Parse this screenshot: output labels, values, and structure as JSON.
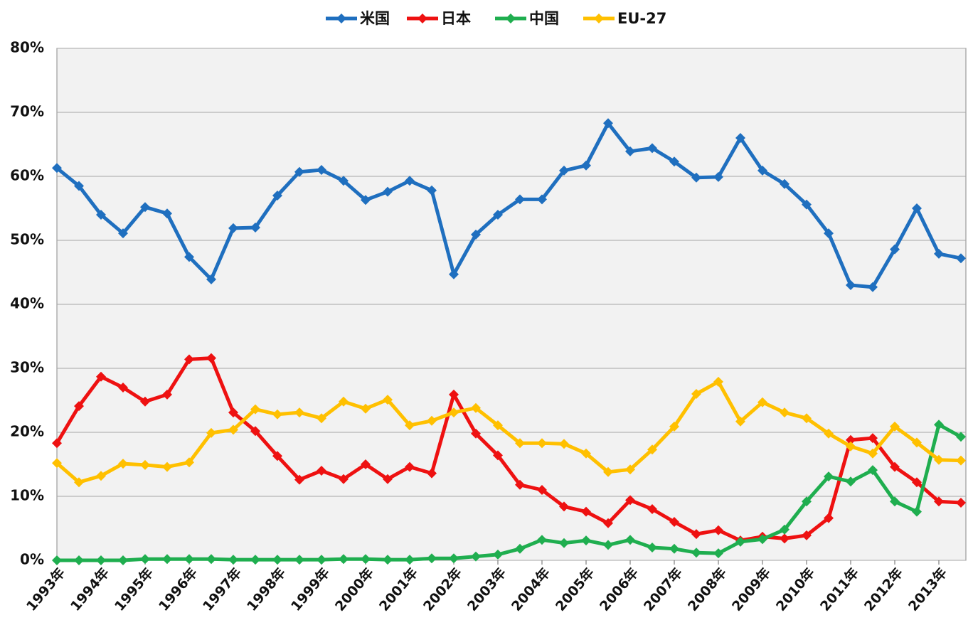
{
  "chart_data": {
    "type": "line",
    "categories": [
      "1993年",
      null,
      "1994年",
      null,
      "1995年",
      null,
      "1996年",
      null,
      "1997年",
      null,
      "1998年",
      null,
      "1999年",
      null,
      "2000年",
      null,
      "2001年",
      null,
      "2002年",
      null,
      "2003年",
      null,
      "2004年",
      null,
      "2005年",
      null,
      "2006年",
      null,
      "2007年",
      null,
      "2008年",
      null,
      "2009年",
      null,
      "2010年",
      null,
      "2011年",
      null,
      "2012年",
      null,
      "2013年",
      null
    ],
    "series": [
      {
        "name": "米国",
        "color": "#1f6fbf",
        "values": [
          61.3,
          58.5,
          54,
          51.1,
          55.2,
          54.2,
          47.4,
          43.9,
          51.9,
          52,
          57,
          60.7,
          61,
          59.3,
          56.3,
          57.6,
          59.3,
          57.8,
          44.7,
          50.9,
          54,
          56.4,
          56.4,
          60.9,
          61.7,
          68.3,
          63.9,
          64.4,
          62.3,
          59.8,
          59.9,
          66,
          60.9,
          58.8,
          55.6,
          51.1,
          43,
          42.7,
          48.6,
          55,
          47.9,
          47.2
        ]
      },
      {
        "name": "日本",
        "color": "#ee1111",
        "values": [
          18.3,
          24.1,
          28.7,
          27,
          24.8,
          25.9,
          31.4,
          31.6,
          23.1,
          20.2,
          16.3,
          12.6,
          14,
          12.7,
          15,
          12.7,
          14.6,
          13.6,
          25.9,
          19.8,
          16.4,
          11.8,
          11,
          8.4,
          7.6,
          5.8,
          9.4,
          8,
          6,
          4.1,
          4.7,
          3.1,
          3.7,
          3.4,
          3.9,
          6.6,
          18.8,
          19.1,
          14.6,
          12.2,
          9.2,
          9
        ]
      },
      {
        "name": "中国",
        "color": "#1fae4f",
        "values": [
          0,
          0,
          0,
          0,
          0.2,
          0.2,
          0.2,
          0.2,
          0.1,
          0.1,
          0.1,
          0.1,
          0.1,
          0.2,
          0.2,
          0.1,
          0.1,
          0.3,
          0.3,
          0.6,
          0.9,
          1.8,
          3.2,
          2.7,
          3.1,
          2.4,
          3.2,
          2,
          1.8,
          1.2,
          1.1,
          2.9,
          3.3,
          4.8,
          9.2,
          13.1,
          12.3,
          14.1,
          9.2,
          7.6,
          21.2,
          19.3
        ]
      },
      {
        "name": "EU-27",
        "color": "#ffc000",
        "values": [
          15.2,
          12.2,
          13.2,
          15.1,
          14.9,
          14.6,
          15.3,
          19.9,
          20.4,
          23.6,
          22.8,
          23.1,
          22.2,
          24.8,
          23.7,
          25.1,
          21.1,
          21.8,
          23.1,
          23.8,
          21.1,
          18.3,
          18.3,
          18.2,
          16.7,
          13.8,
          14.2,
          17.3,
          20.9,
          26,
          27.9,
          21.7,
          24.7,
          23.1,
          22.2,
          19.8,
          17.8,
          16.7,
          20.9,
          18.4,
          15.7,
          15.6
        ]
      }
    ],
    "ylim": [
      0,
      80
    ],
    "yticks": [
      {
        "value": 0,
        "label": "0%"
      },
      {
        "value": 10,
        "label": "10%"
      },
      {
        "value": 20,
        "label": "20%"
      },
      {
        "value": 30,
        "label": "30%"
      },
      {
        "value": 40,
        "label": "40%"
      },
      {
        "value": 50,
        "label": "50%"
      },
      {
        "value": 60,
        "label": "60%"
      },
      {
        "value": 70,
        "label": "70%"
      },
      {
        "value": 80,
        "label": "80%"
      }
    ],
    "grid": true,
    "legend": "top"
  }
}
